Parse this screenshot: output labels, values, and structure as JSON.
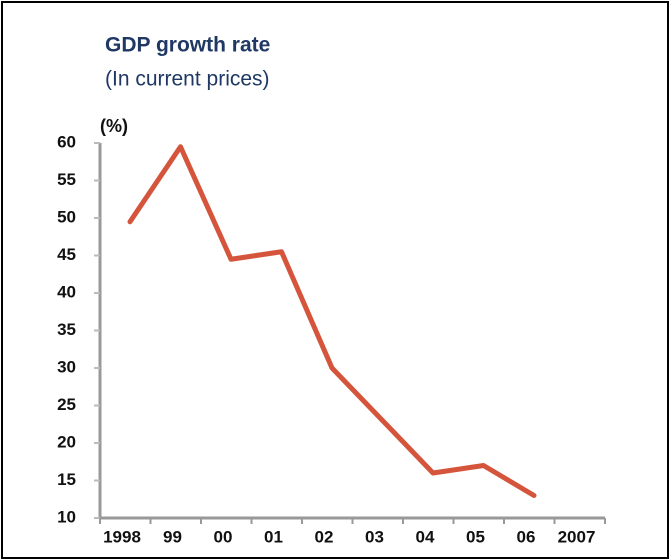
{
  "chart_data": {
    "type": "line",
    "title": "GDP growth rate",
    "subtitle": "(In current prices)",
    "y_label": "(%)",
    "categories": [
      "1998",
      "99",
      "00",
      "01",
      "02",
      "03",
      "04",
      "05",
      "06",
      "2007"
    ],
    "series": [
      {
        "name": "GDP growth rate",
        "color": "#d4553c",
        "values": [
          49.5,
          59.5,
          44.5,
          45.5,
          30,
          23,
          16,
          17,
          13,
          null
        ]
      }
    ],
    "ylim": [
      10,
      60
    ],
    "yticks": [
      10,
      15,
      20,
      25,
      30,
      35,
      40,
      45,
      50,
      55,
      60
    ],
    "grid": false
  }
}
